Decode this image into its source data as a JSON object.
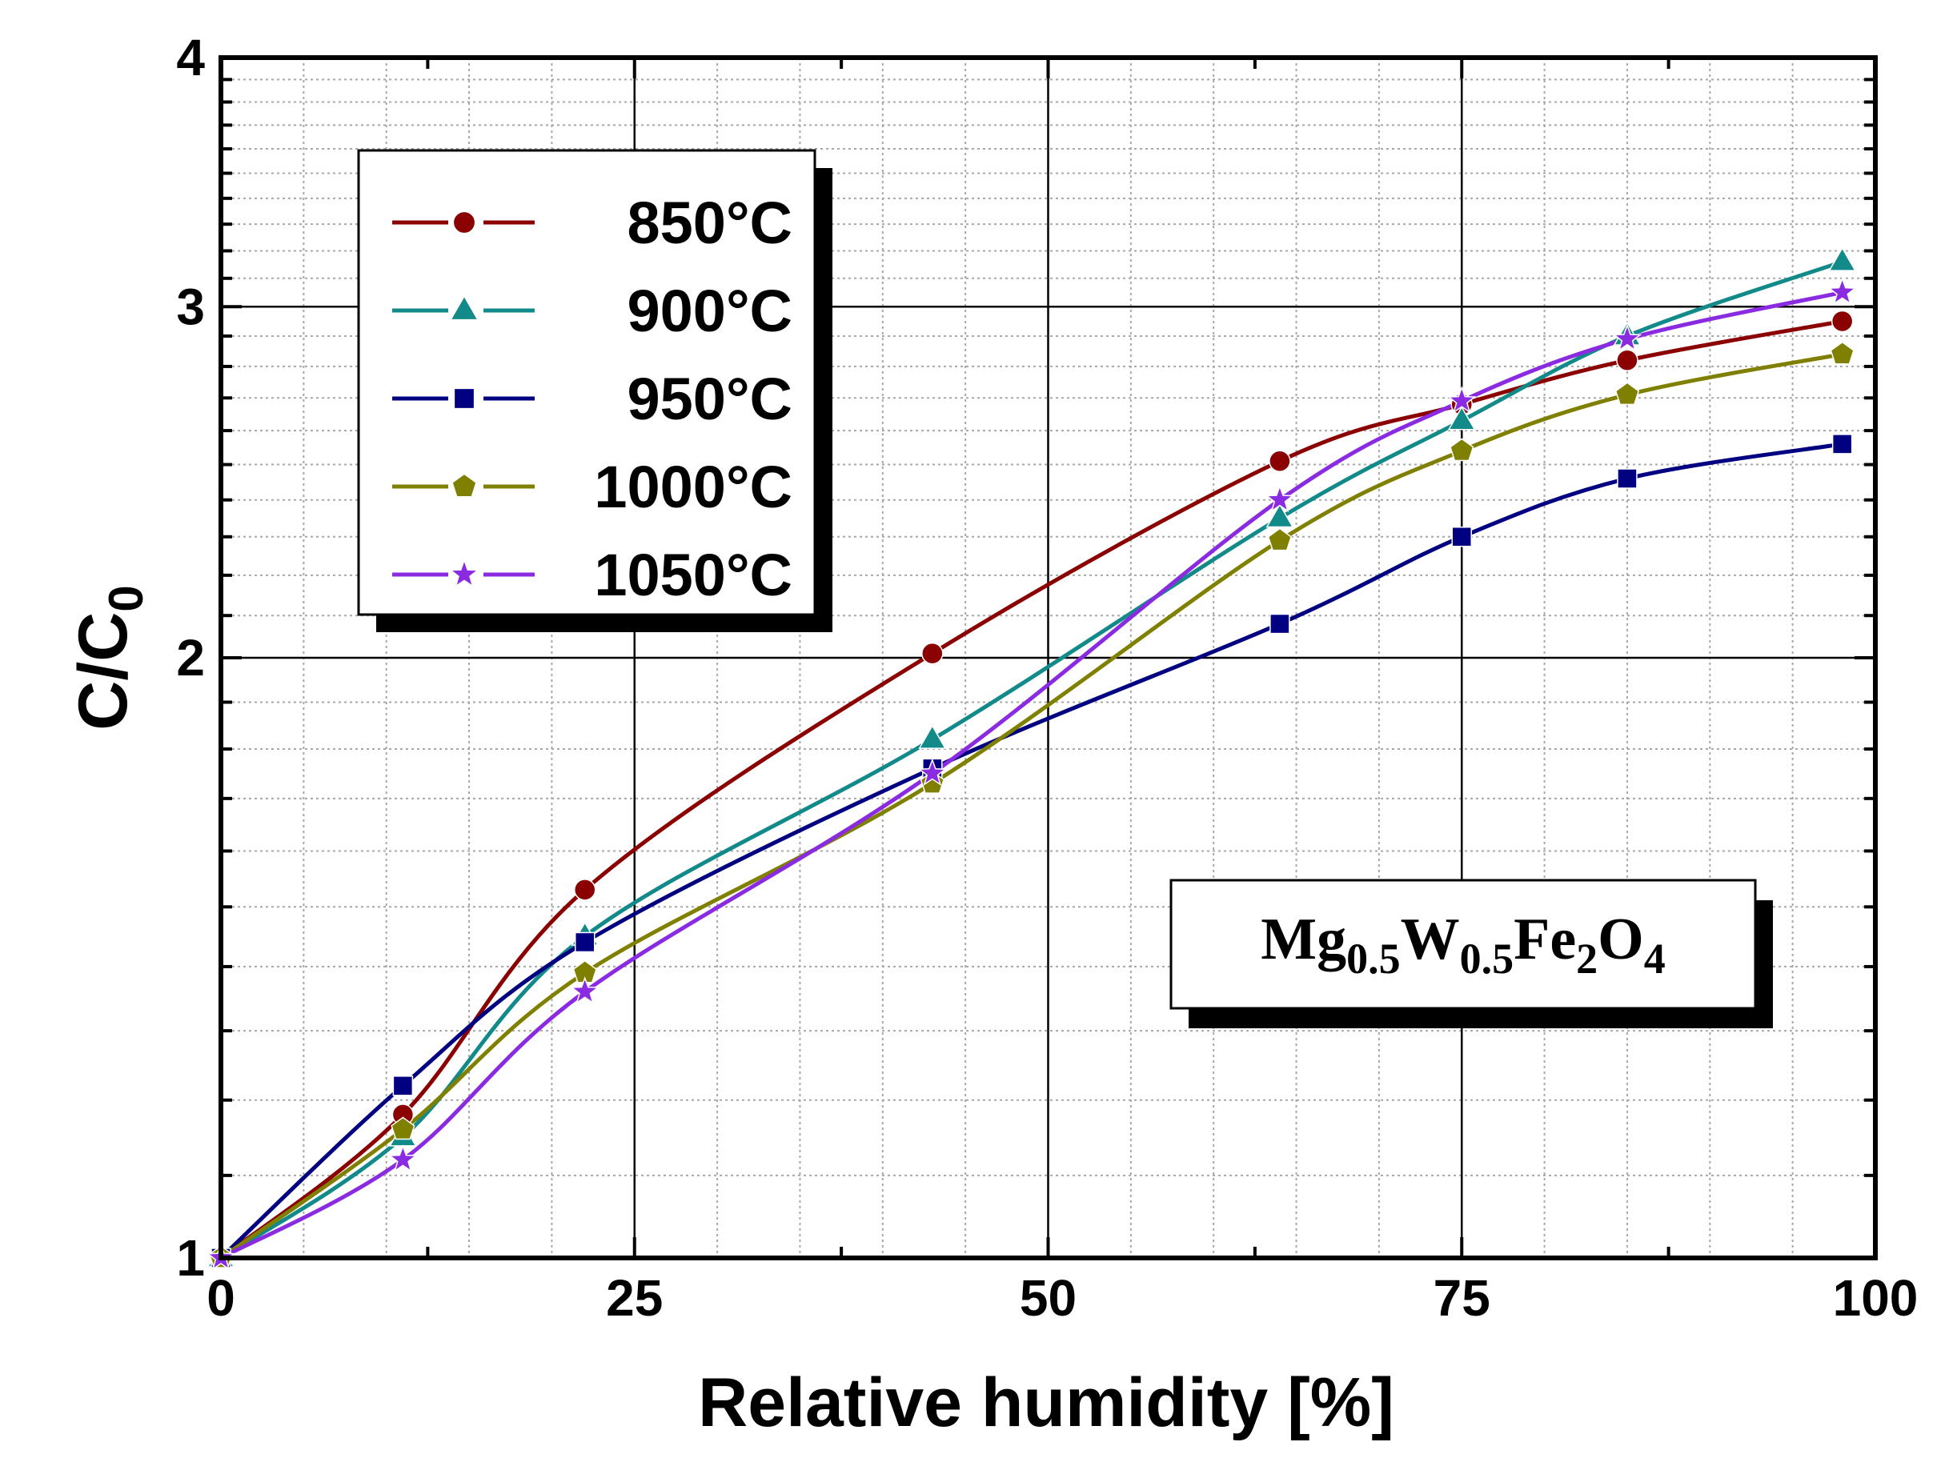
{
  "chart_data": {
    "type": "line",
    "title": "",
    "xlabel": "Relative humidity [%]",
    "ylabel": {
      "main": "C/C",
      "sub": "0"
    },
    "xlim": [
      0,
      100
    ],
    "ylim": [
      1,
      4
    ],
    "yscale": "log",
    "grid": true,
    "x_ticks": [
      "0",
      "25",
      "50",
      "75",
      "100"
    ],
    "x_tick_values": [
      0,
      25,
      50,
      75,
      100
    ],
    "y_ticks": [
      "1",
      "2",
      "3",
      "4"
    ],
    "y_tick_values": [
      1,
      2,
      3,
      4
    ],
    "legend_position": "top-left",
    "x": [
      0,
      11,
      22,
      43,
      64,
      75,
      85,
      98
    ],
    "series": [
      {
        "name": "850°C",
        "color": "#8b0000",
        "marker": "circle",
        "values": [
          1.0,
          1.18,
          1.53,
          2.01,
          2.51,
          2.68,
          2.82,
          2.95
        ]
      },
      {
        "name": "900°C",
        "color": "#138a8a",
        "marker": "triangle",
        "values": [
          1.0,
          1.15,
          1.45,
          1.82,
          2.35,
          2.63,
          2.9,
          3.16
        ]
      },
      {
        "name": "950°C",
        "color": "#000080",
        "marker": "square",
        "values": [
          1.0,
          1.22,
          1.44,
          1.76,
          2.08,
          2.3,
          2.46,
          2.56
        ]
      },
      {
        "name": "1000°C",
        "color": "#808000",
        "marker": "pentagon",
        "values": [
          1.0,
          1.16,
          1.39,
          1.73,
          2.29,
          2.54,
          2.71,
          2.84
        ]
      },
      {
        "name": "1050°C",
        "color": "#8a2be2",
        "marker": "star",
        "values": [
          1.0,
          1.12,
          1.36,
          1.75,
          2.4,
          2.69,
          2.89,
          3.05
        ]
      }
    ],
    "annotation": {
      "parts": [
        {
          "text": "Mg",
          "sub": false
        },
        {
          "text": "0.5",
          "sub": true
        },
        {
          "text": "W",
          "sub": false
        },
        {
          "text": "0.5",
          "sub": true
        },
        {
          "text": "Fe",
          "sub": false
        },
        {
          "text": "2",
          "sub": true
        },
        {
          "text": "O",
          "sub": false
        },
        {
          "text": "4",
          "sub": true
        }
      ]
    }
  }
}
